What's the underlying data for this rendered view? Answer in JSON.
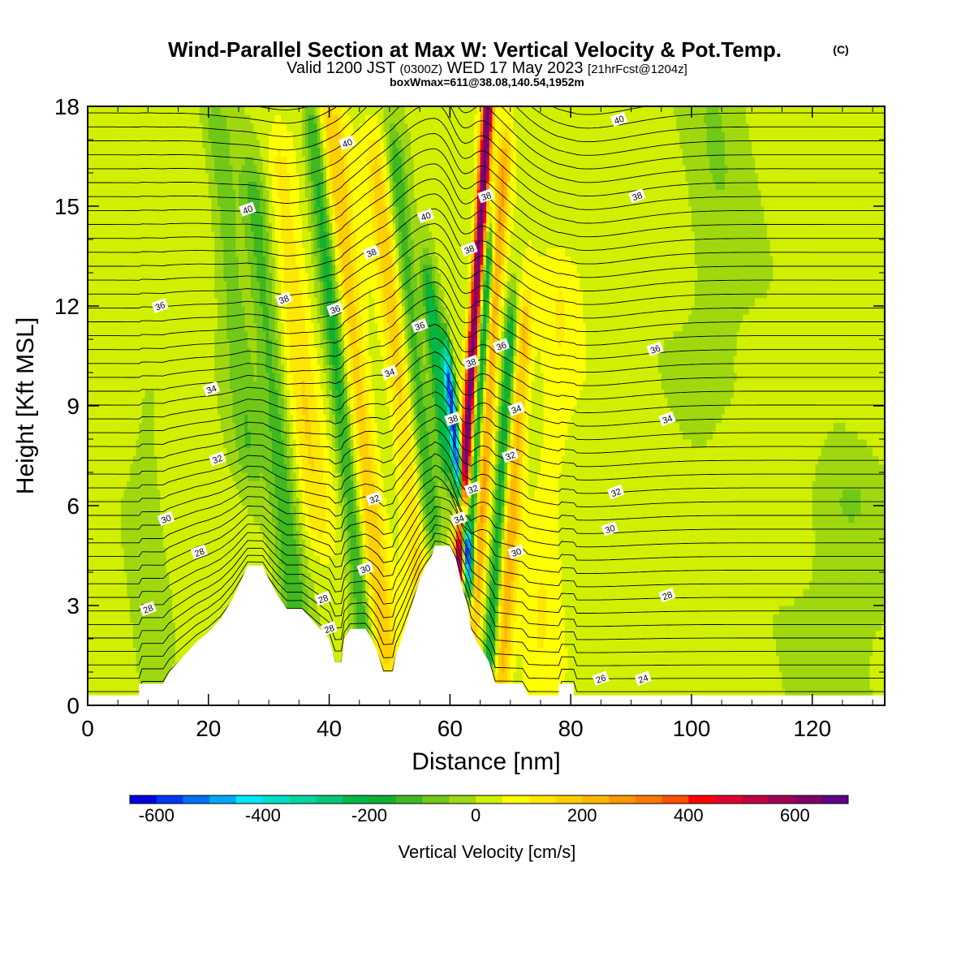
{
  "header": {
    "title": "Wind-Parallel Section at Max W: Vertical Velocity & Pot.Temp.",
    "copyright": "(C)",
    "valid_prefix": "Valid 1200 JST",
    "valid_utc": "(0300Z)",
    "valid_date": "WED 17 May 2023",
    "forecast": "[21hrFcst@1204z]",
    "box_info": "boxWmax=611@38.08,140.54,1952m"
  },
  "chart_data": {
    "type": "heatmap",
    "xlabel": "Distance [nm]",
    "ylabel": "Height [Kft MSL]",
    "xlim": [
      0,
      132
    ],
    "ylim": [
      0,
      18
    ],
    "x_ticks": [
      0,
      20,
      40,
      60,
      80,
      100,
      120
    ],
    "x_tick_labels": [
      "0",
      "20",
      "40",
      "60",
      "80",
      "100",
      "120"
    ],
    "y_ticks": [
      0,
      3,
      6,
      9,
      12,
      15,
      18
    ],
    "y_tick_labels": [
      "0",
      "3",
      "6",
      "9",
      "12",
      "15",
      "18"
    ],
    "terrain": [
      [
        0,
        0.3
      ],
      [
        4,
        0.3
      ],
      [
        8.5,
        0.3
      ],
      [
        8.5,
        0.65
      ],
      [
        12.5,
        0.65
      ],
      [
        13.5,
        1.0
      ],
      [
        15,
        1.3
      ],
      [
        16.5,
        1.6
      ],
      [
        18,
        1.9
      ],
      [
        20,
        2.2
      ],
      [
        22,
        2.6
      ],
      [
        24,
        3.2
      ],
      [
        25.5,
        3.8
      ],
      [
        26.5,
        4.2
      ],
      [
        29,
        4.2
      ],
      [
        30,
        3.8
      ],
      [
        31.5,
        3.3
      ],
      [
        33,
        2.9
      ],
      [
        35.5,
        2.9
      ],
      [
        37,
        2.6
      ],
      [
        38.5,
        2.3
      ],
      [
        40,
        2.0
      ],
      [
        41,
        1.3
      ],
      [
        42,
        1.3
      ],
      [
        42.5,
        2.0
      ],
      [
        43.5,
        2.3
      ],
      [
        46,
        2.3
      ],
      [
        47,
        2.0
      ],
      [
        48,
        1.6
      ],
      [
        49,
        1.0
      ],
      [
        50.5,
        1.0
      ],
      [
        51,
        1.5
      ],
      [
        52,
        2.0
      ],
      [
        53,
        2.6
      ],
      [
        54,
        3.2
      ],
      [
        55,
        3.8
      ],
      [
        56,
        4.2
      ],
      [
        57,
        4.5
      ],
      [
        57.5,
        4.8
      ],
      [
        60,
        4.8
      ],
      [
        61,
        4.4
      ],
      [
        62,
        3.6
      ],
      [
        63,
        2.9
      ],
      [
        63.5,
        2.3
      ],
      [
        64.5,
        1.9
      ],
      [
        65.5,
        1.6
      ],
      [
        66.5,
        1.3
      ],
      [
        67,
        1.0
      ],
      [
        67.5,
        0.65
      ],
      [
        70,
        0.65
      ],
      [
        72,
        0.65
      ],
      [
        73,
        0.3
      ],
      [
        78,
        0.3
      ],
      [
        78,
        0.65
      ],
      [
        80.5,
        0.65
      ],
      [
        80.5,
        0.3
      ],
      [
        132,
        0.3
      ]
    ],
    "w_features": [
      {
        "x": 62.8,
        "z_range": [
          4.5,
          17.8
        ],
        "w": 650,
        "sigma": 0.9
      },
      {
        "x": 60.3,
        "z_range": [
          5,
          9.5
        ],
        "w": -600,
        "sigma": 0.8
      },
      {
        "x": 58.5,
        "z_range": [
          8,
          12
        ],
        "w": -260,
        "sigma": 1.3
      },
      {
        "x": 66,
        "z_range": [
          1,
          16
        ],
        "w": 220,
        "sigma": 1.2
      },
      {
        "x": 64.5,
        "z_range": [
          5,
          13
        ],
        "w": -280,
        "sigma": 0.8
      },
      {
        "x": 71,
        "z_range": [
          1,
          11
        ],
        "w": 200,
        "sigma": 1.5
      },
      {
        "x": 69,
        "z_range": [
          2,
          11
        ],
        "w": -240,
        "sigma": 1.1
      },
      {
        "x": 45,
        "z_range": [
          2,
          17
        ],
        "w": 160,
        "sigma": 2.2
      },
      {
        "x": 42,
        "z_range": [
          2,
          17
        ],
        "w": -200,
        "sigma": 1.6
      },
      {
        "x": 52,
        "z_range": [
          3,
          16
        ],
        "w": 140,
        "sigma": 2.0
      },
      {
        "x": 55,
        "z_range": [
          6,
          16
        ],
        "w": -170,
        "sigma": 1.6
      },
      {
        "x": 31,
        "z_range": [
          3,
          15
        ],
        "w": -150,
        "sigma": 2.2
      },
      {
        "x": 36,
        "z_range": [
          6,
          16
        ],
        "w": 110,
        "sigma": 2.5
      },
      {
        "x": 26,
        "z_range": [
          8,
          17
        ],
        "w": -110,
        "sigma": 2.5
      },
      {
        "x": 77,
        "z_range": [
          1,
          12
        ],
        "w": 60,
        "sigma": 3.0
      },
      {
        "x": 104,
        "z_range": [
          10,
          18
        ],
        "w": -60,
        "sigma": 6.0
      },
      {
        "x": 125,
        "z_range": [
          0,
          6
        ],
        "w": -70,
        "sigma": 7.0
      },
      {
        "x": 10,
        "z_range": [
          1,
          9
        ],
        "w": -50,
        "sigma": 3.0
      }
    ],
    "theta_contour_labels": [
      {
        "x": 43,
        "z": 16.9,
        "value": "40"
      },
      {
        "x": 26.5,
        "z": 14.9,
        "value": "40"
      },
      {
        "x": 56,
        "z": 14.7,
        "value": "40"
      },
      {
        "x": 88,
        "z": 17.6,
        "value": "40"
      },
      {
        "x": 66,
        "z": 15.3,
        "value": "38"
      },
      {
        "x": 47,
        "z": 13.6,
        "value": "38"
      },
      {
        "x": 63.2,
        "z": 13.7,
        "value": "38"
      },
      {
        "x": 91,
        "z": 15.3,
        "value": "38"
      },
      {
        "x": 32.5,
        "z": 12.2,
        "value": "38"
      },
      {
        "x": 63.5,
        "z": 10.3,
        "value": "38"
      },
      {
        "x": 60.5,
        "z": 8.6,
        "value": "38"
      },
      {
        "x": 12,
        "z": 12.0,
        "value": "36"
      },
      {
        "x": 41,
        "z": 11.9,
        "value": "36"
      },
      {
        "x": 55,
        "z": 11.4,
        "value": "36"
      },
      {
        "x": 68.5,
        "z": 10.8,
        "value": "36"
      },
      {
        "x": 94,
        "z": 10.7,
        "value": "36"
      },
      {
        "x": 20.5,
        "z": 9.5,
        "value": "34"
      },
      {
        "x": 50,
        "z": 10.0,
        "value": "34"
      },
      {
        "x": 71,
        "z": 8.9,
        "value": "34"
      },
      {
        "x": 96,
        "z": 8.6,
        "value": "34"
      },
      {
        "x": 61.5,
        "z": 5.6,
        "value": "34"
      },
      {
        "x": 21.5,
        "z": 7.4,
        "value": "32"
      },
      {
        "x": 47.5,
        "z": 6.2,
        "value": "32"
      },
      {
        "x": 63.8,
        "z": 6.5,
        "value": "32"
      },
      {
        "x": 70,
        "z": 7.5,
        "value": "32"
      },
      {
        "x": 87.5,
        "z": 6.4,
        "value": "32"
      },
      {
        "x": 13,
        "z": 5.6,
        "value": "30"
      },
      {
        "x": 46,
        "z": 4.1,
        "value": "30"
      },
      {
        "x": 71,
        "z": 4.6,
        "value": "30"
      },
      {
        "x": 86.5,
        "z": 5.3,
        "value": "30"
      },
      {
        "x": 18.5,
        "z": 4.6,
        "value": "28"
      },
      {
        "x": 39,
        "z": 3.2,
        "value": "28"
      },
      {
        "x": 10,
        "z": 2.9,
        "value": "28"
      },
      {
        "x": 40,
        "z": 2.3,
        "value": "28"
      },
      {
        "x": 96,
        "z": 3.3,
        "value": "28"
      },
      {
        "x": 85,
        "z": 0.8,
        "value": "26"
      },
      {
        "x": 92,
        "z": 0.8,
        "value": "24"
      }
    ]
  },
  "colorbar": {
    "label": "Vertical Velocity [cm/s]",
    "min": -650,
    "max": 700,
    "step": 50,
    "ticks": [
      -600,
      -400,
      -200,
      0,
      200,
      400,
      600
    ],
    "tick_labels": [
      "-600",
      "-400",
      "-200",
      "0",
      "200",
      "400",
      "600"
    ],
    "colors": [
      "#0000e0",
      "#0038f0",
      "#0070f8",
      "#00a8f8",
      "#00e8f8",
      "#00e0c8",
      "#00d8a0",
      "#00c878",
      "#00b848",
      "#10b030",
      "#40b820",
      "#70c818",
      "#a0d810",
      "#d0f000",
      "#ffff00",
      "#ffe800",
      "#ffd000",
      "#ffb800",
      "#ff9800",
      "#ff7800",
      "#ff5000",
      "#ff0000",
      "#e00030",
      "#c00040",
      "#a00058",
      "#800068",
      "#600088"
    ]
  }
}
